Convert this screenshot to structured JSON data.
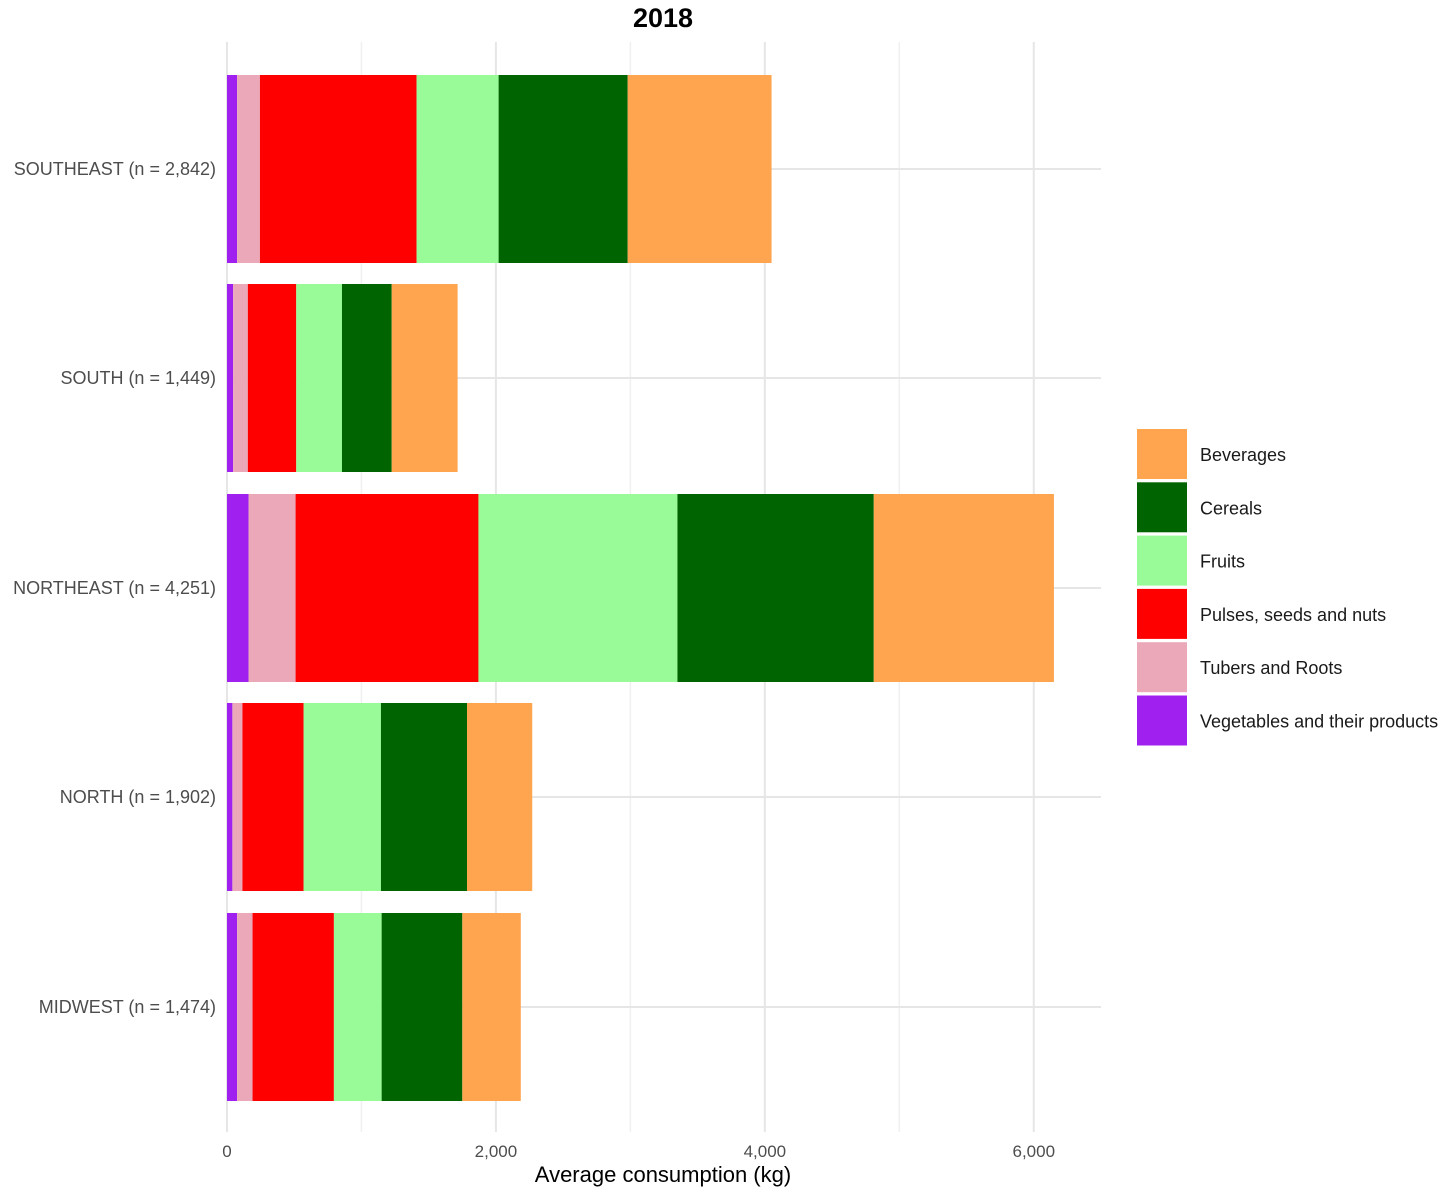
{
  "chart_data": {
    "type": "bar",
    "orientation": "horizontal",
    "stacked": true,
    "title": "2018",
    "xlabel": "Average consumption (kg)",
    "ylabel": "",
    "xlim": [
      0,
      6500
    ],
    "xticks": [
      0,
      2000,
      4000,
      6000
    ],
    "xtick_labels": [
      "0",
      "2,000",
      "4,000",
      "6,000"
    ],
    "grid": true,
    "legend_position": "right",
    "categories": [
      "SOUTHEAST (n = 2,842)",
      "SOUTH (n = 1,449)",
      "NORTHEAST (n = 4,251)",
      "NORTH (n = 1,902)",
      "MIDWEST (n = 1,474)"
    ],
    "series": [
      {
        "name": "Vegetables and their products",
        "color": "#A020F0",
        "values": [
          75,
          45,
          160,
          40,
          75
        ]
      },
      {
        "name": "Tubers and Roots",
        "color": "#EBA8B8",
        "values": [
          170,
          110,
          350,
          75,
          115
        ]
      },
      {
        "name": "Pulses, seeds and nuts",
        "color": "#FF0000",
        "values": [
          1165,
          360,
          1360,
          455,
          605
        ]
      },
      {
        "name": "Fruits",
        "color": "#98FB98",
        "values": [
          610,
          340,
          1480,
          575,
          355
        ]
      },
      {
        "name": "Cereals",
        "color": "#006400",
        "values": [
          960,
          370,
          1460,
          640,
          600
        ]
      },
      {
        "name": "Beverages",
        "color": "#FFA54F",
        "values": [
          1070,
          490,
          1340,
          485,
          435
        ]
      }
    ],
    "legend_order": [
      "Beverages",
      "Cereals",
      "Fruits",
      "Pulses, seeds and nuts",
      "Tubers and Roots",
      "Vegetables and their products"
    ]
  }
}
